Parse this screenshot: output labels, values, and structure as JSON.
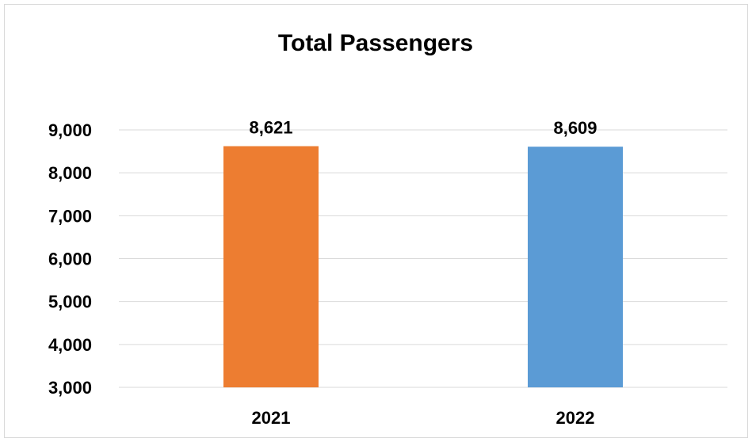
{
  "chart_data": {
    "type": "bar",
    "title": "Total Passengers",
    "xlabel": "",
    "ylabel": "",
    "categories": [
      "2021",
      "2022"
    ],
    "values": [
      8621,
      8609
    ],
    "value_labels": [
      "8,621",
      "8,609"
    ],
    "bar_colors": [
      "#ed7d31",
      "#5b9bd5"
    ],
    "ylim": [
      3000,
      9000
    ],
    "yticks": [
      3000,
      4000,
      5000,
      6000,
      7000,
      8000,
      9000
    ],
    "ytick_labels": [
      "3,000",
      "4,000",
      "5,000",
      "6,000",
      "7,000",
      "8,000",
      "9,000"
    ],
    "grid": true,
    "legend": "none"
  }
}
